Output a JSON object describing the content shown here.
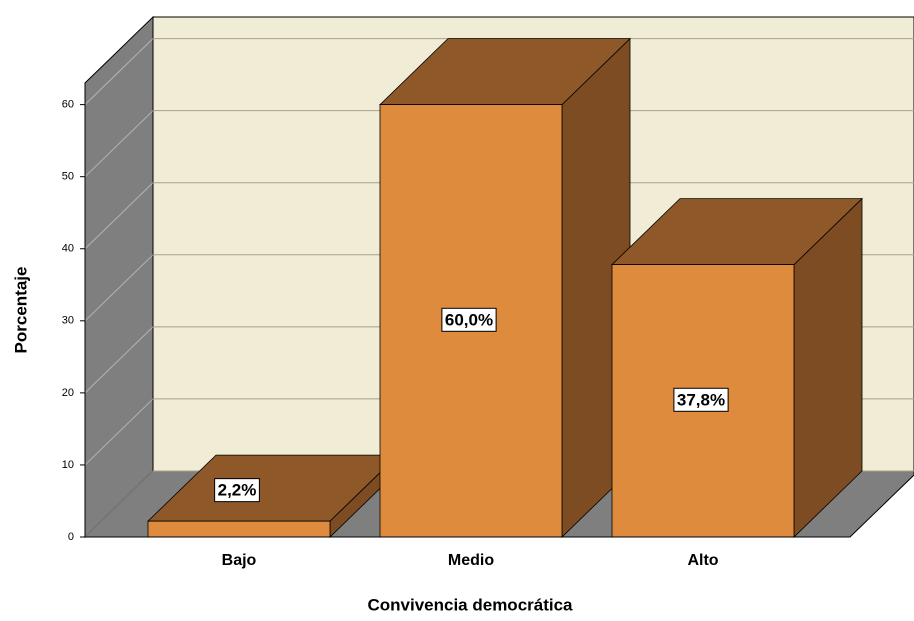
{
  "chart_data": {
    "type": "bar3d",
    "x_label": "Convivencia democrática",
    "y_label": "Porcentaje",
    "categories": [
      "Bajo",
      "Medio",
      "Alto"
    ],
    "values": [
      2.2,
      60.0,
      37.8
    ],
    "value_labels": [
      "2,2%",
      "60,0%",
      "37,8%"
    ],
    "color": "#df8b3e",
    "ylim": [
      0,
      63
    ],
    "yticks": [
      0,
      10,
      20,
      30,
      40,
      50,
      60
    ],
    "grid": true
  }
}
